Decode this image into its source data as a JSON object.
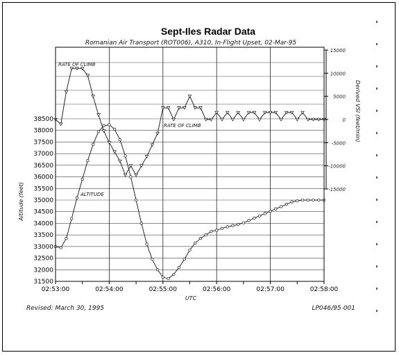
{
  "chart_data": {
    "type": "line",
    "title": "Sept-Iles Radar Data",
    "subtitle": "Romanian Air Transport (ROT006), A310, In-Flight Upset, 02-Mar-95",
    "xlabel": "UTC",
    "ylabel_left": "Altitude (feet)",
    "ylabel_right": "Derived VSI (feet/min)",
    "x_tick_labels": [
      "02:53:00",
      "02:54:00",
      "02:55:00",
      "02:56:00",
      "02:57:00",
      "02:58:00"
    ],
    "xlim_minutes": [
      0,
      5
    ],
    "y_left_ticks": [
      "38500",
      "38000",
      "37500",
      "37000",
      "36500",
      "36000",
      "35500",
      "35000",
      "34500",
      "34000",
      "33500",
      "33000",
      "32500",
      "32000",
      "31500"
    ],
    "ylim_left": [
      31500,
      38500
    ],
    "y_right_ticks": [
      "15000",
      "10000",
      "5000",
      "0",
      "-5000",
      "-10000",
      "-15000"
    ],
    "ylim_right": [
      -15000,
      15000
    ],
    "annotations": {
      "rate_of_climb_top": "RATE OF CLIMB",
      "rate_of_climb_mid": "RATE OF CLIMB",
      "altitude": "ALTITUDE"
    },
    "series": [
      {
        "name": "ALTITUDE",
        "axis": "left",
        "x": [
          0.0,
          0.1,
          0.2,
          0.3,
          0.4,
          0.5,
          0.6,
          0.7,
          0.8,
          0.9,
          1.0,
          1.1,
          1.2,
          1.3,
          1.4,
          1.5,
          1.6,
          1.7,
          1.8,
          1.9,
          2.0,
          2.1,
          2.2,
          2.3,
          2.4,
          2.5,
          2.6,
          2.7,
          2.8,
          2.9,
          3.0,
          3.1,
          3.2,
          3.3,
          3.4,
          3.5,
          3.6,
          3.7,
          3.8,
          3.9,
          4.0,
          4.1,
          4.2,
          4.3,
          4.4,
          4.5,
          4.6,
          4.7,
          4.8,
          4.9,
          5.0
        ],
        "values": [
          33000,
          32950,
          33350,
          34200,
          35100,
          35900,
          36700,
          37400,
          37950,
          38200,
          38250,
          38050,
          37600,
          36900,
          36000,
          35000,
          34000,
          33100,
          32450,
          32000,
          31680,
          31620,
          31800,
          32100,
          32450,
          32850,
          33150,
          33350,
          33500,
          33650,
          33700,
          33780,
          33850,
          33900,
          33950,
          34020,
          34120,
          34220,
          34320,
          34420,
          34520,
          34620,
          34720,
          34820,
          34920,
          34970,
          35000,
          35000,
          35000,
          35000,
          35000
        ]
      },
      {
        "name": "RATE OF CLIMB",
        "axis": "right",
        "x": [
          0.0,
          0.1,
          0.2,
          0.3,
          0.4,
          0.5,
          0.6,
          0.7,
          0.8,
          0.9,
          1.0,
          1.1,
          1.2,
          1.3,
          1.4,
          1.5,
          1.6,
          1.7,
          1.8,
          1.9,
          2.0,
          2.1,
          2.2,
          2.3,
          2.4,
          2.5,
          2.6,
          2.7,
          2.8,
          2.9,
          3.0,
          3.1,
          3.2,
          3.3,
          3.4,
          3.5,
          3.6,
          3.7,
          3.8,
          3.9,
          4.0,
          4.1,
          4.2,
          4.3,
          4.4,
          4.5,
          4.6,
          4.7,
          4.8,
          4.9,
          5.0
        ],
        "values": [
          0,
          -1000,
          6000,
          11000,
          11000,
          11000,
          9500,
          5000,
          1000,
          -2500,
          -5000,
          -7000,
          -9000,
          -12000,
          -10000,
          -12000,
          -10000,
          -8000,
          -5500,
          -3000,
          2500,
          2500,
          0,
          2500,
          2500,
          5000,
          2500,
          2500,
          0,
          0,
          1500,
          0,
          1500,
          0,
          1500,
          0,
          1500,
          1500,
          0,
          1500,
          1500,
          1500,
          0,
          1500,
          1500,
          0,
          1500,
          0,
          0,
          0,
          0
        ]
      }
    ]
  },
  "footer": {
    "revised": "Revised: March 30, 1995",
    "ref": "LP046/95-001"
  }
}
